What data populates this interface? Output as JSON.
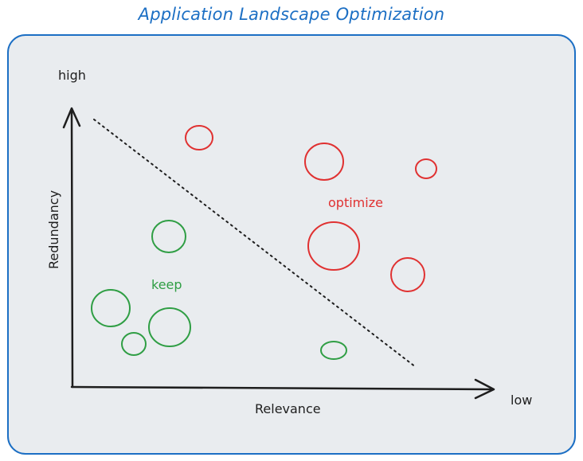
{
  "title": "Application Landscape Optimization",
  "axes": {
    "y_label": "Redundancy",
    "y_high_label": "high",
    "x_label": "Relevance",
    "x_low_label": "low"
  },
  "zones": {
    "optimize_label": "optimize",
    "keep_label": "keep"
  },
  "colors": {
    "title": "#1c6fc4",
    "frame_stroke": "#1c6fc4",
    "frame_fill": "#e9ecef",
    "axis": "#1e1e1e",
    "optimize": "#e03131",
    "keep": "#2f9e44"
  }
}
